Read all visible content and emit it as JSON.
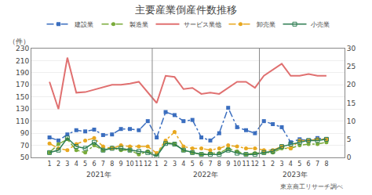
{
  "chart_data": {
    "type": "line",
    "title": "主要産業倒産件数推移",
    "y_label": "（件）",
    "source": "東京商工リサーチ調べ",
    "categories": [
      "1",
      "2",
      "3",
      "4",
      "5",
      "6",
      "7",
      "8",
      "9",
      "10",
      "11",
      "12",
      "1",
      "2",
      "3",
      "4",
      "5",
      "6",
      "7",
      "8",
      "9",
      "10",
      "11",
      "12",
      "1",
      "2",
      "3",
      "4",
      "5",
      "6",
      "7",
      "8"
    ],
    "annotations": [
      {
        "text": "2021年"
      },
      {
        "text": "2022年"
      },
      {
        "text": "2023年"
      }
    ],
    "ylim": [
      50,
      230
    ],
    "yticks": [
      50,
      70,
      90,
      110,
      130,
      150,
      170,
      190,
      210,
      230
    ],
    "y2lim": [
      0,
      30
    ],
    "y2ticks": [
      0,
      5,
      10,
      15,
      20,
      25,
      30
    ],
    "grid": true,
    "legend": "top",
    "series": [
      {
        "name": "建設業",
        "color": "#3B6EBF",
        "marker": "square",
        "line_style": "dashdot",
        "values": [
          83,
          78,
          88,
          95,
          93,
          96,
          87,
          88,
          97,
          97,
          95,
          110,
          83,
          125,
          120,
          110,
          112,
          83,
          78,
          90,
          132,
          100,
          95,
          90,
          110,
          105,
          100,
          75,
          80,
          78,
          82,
          80
        ]
      },
      {
        "name": "製造業",
        "color": "#7AAB3A",
        "marker": "circle",
        "line_style": "dashdot",
        "values": [
          58,
          72,
          80,
          62,
          58,
          70,
          62,
          66,
          62,
          62,
          55,
          60,
          55,
          75,
          72,
          62,
          58,
          55,
          57,
          57,
          65,
          60,
          55,
          57,
          58,
          58,
          65,
          65,
          70,
          72,
          72,
          75
        ]
      },
      {
        "name": "サービス業他",
        "color": "#E07070",
        "line_style": "solid",
        "values": [
          175,
          130,
          215,
          157,
          158,
          162,
          167,
          170,
          170,
          172,
          175,
          158,
          140,
          185,
          183,
          163,
          165,
          155,
          157,
          155,
          165,
          175,
          175,
          165,
          185,
          195,
          205,
          185,
          185,
          188,
          185,
          185
        ]
      },
      {
        "name": "卸売業",
        "color": "#E8A820",
        "marker": "circle",
        "line_style": "dashdot",
        "values": [
          73,
          65,
          62,
          72,
          78,
          82,
          68,
          65,
          70,
          68,
          68,
          68,
          57,
          78,
          92,
          68,
          65,
          65,
          62,
          65,
          70,
          68,
          65,
          65,
          62,
          62,
          68,
          65,
          78,
          78,
          80,
          80
        ]
      },
      {
        "name": "小売業",
        "color": "#2E7D52",
        "marker": "square-open",
        "line_style": "solid",
        "values": [
          58,
          62,
          82,
          68,
          65,
          75,
          62,
          65,
          65,
          62,
          60,
          58,
          52,
          73,
          72,
          62,
          58,
          55,
          55,
          55,
          62,
          57,
          55,
          55,
          58,
          60,
          68,
          72,
          75,
          78,
          78,
          80
        ]
      }
    ]
  }
}
